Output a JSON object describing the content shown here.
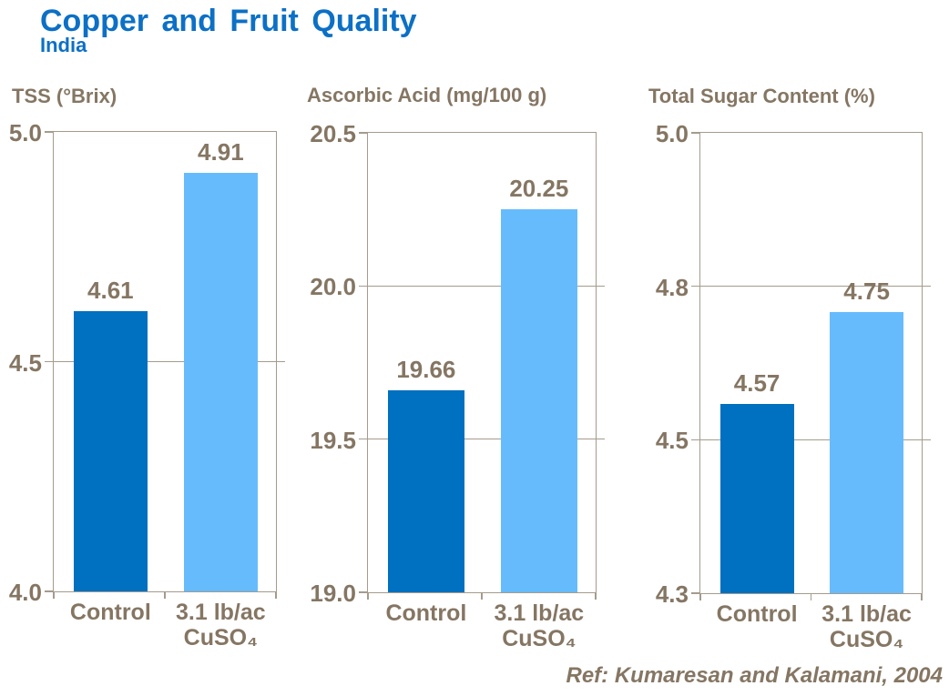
{
  "header": {
    "title": "Copper and Fruit Quality",
    "subtitle": "India"
  },
  "footer": {
    "reference": "Ref: Kumaresan and Kalamani, 2004"
  },
  "colors": {
    "title_blue": "#0c70c6",
    "text_brown": "#857663",
    "axis_tan": "#a59b8c",
    "bar_control": "#0070c0",
    "bar_treatment": "#66bbfc"
  },
  "chart_data": [
    {
      "type": "bar",
      "title": "TSS (°Brix)",
      "categories": [
        "Control",
        "3.1 lb/ac\nCuSO₄"
      ],
      "values": [
        4.61,
        4.91
      ],
      "data_labels": [
        "4.61",
        "4.91"
      ],
      "yticks": [
        5.0,
        4.5,
        4.0
      ],
      "ytick_labels": [
        "5.0",
        "4.5",
        "4.0"
      ],
      "ylim": [
        4.0,
        5.0
      ],
      "grid": true,
      "legend": false
    },
    {
      "type": "bar",
      "title": "Ascorbic Acid (mg/100 g)",
      "categories": [
        "Control",
        "3.1 lb/ac\nCuSO₄"
      ],
      "values": [
        19.66,
        20.25
      ],
      "data_labels": [
        "19.66",
        "20.25"
      ],
      "yticks": [
        20.5,
        20.0,
        19.5,
        19.0
      ],
      "ytick_labels": [
        "20.5",
        "20.0",
        "19.5",
        "19.0"
      ],
      "ylim": [
        19.0,
        20.5
      ],
      "grid": true,
      "legend": false
    },
    {
      "type": "bar",
      "title": "Total Sugar Content (%)",
      "categories": [
        "Control",
        "3.1 lb/ac\nCuSO₄"
      ],
      "values": [
        4.57,
        4.75
      ],
      "data_labels": [
        "4.57",
        "4.75"
      ],
      "yticks": [
        5.0,
        4.8,
        4.5,
        4.3
      ],
      "ytick_labels": [
        "5.0",
        "4.8",
        "4.5",
        "4.3"
      ],
      "ylim": [
        4.3,
        5.0
      ],
      "grid": true,
      "legend": false
    }
  ]
}
